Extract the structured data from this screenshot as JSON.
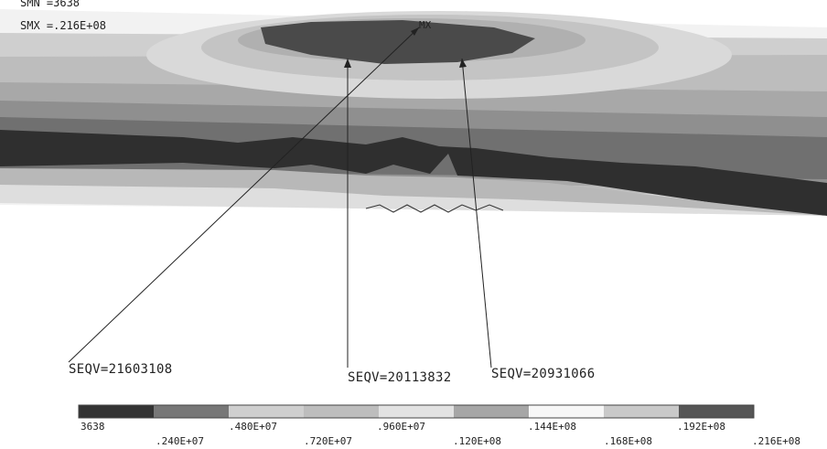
{
  "header": {
    "smn": "SMN =3638",
    "smx": "SMX =.216E+08"
  },
  "plot": {
    "max_marker": "MX",
    "band_shades": [
      "#2b2b2b",
      "#555555",
      "#7b7b7b",
      "#9e9e9e",
      "#bdbdbd",
      "#d7d7d7",
      "#ececec",
      "#f7f7f7"
    ]
  },
  "callouts": [
    {
      "label": "SEQV=21603108",
      "value": 21603108
    },
    {
      "label": "SEQV=20113832",
      "value": 20113832
    },
    {
      "label": "SEQV=20931066",
      "value": 20931066
    }
  ],
  "legend": {
    "min_value": 3638,
    "max_value": 21600000,
    "upper_labels": [
      "3638",
      ".480E+07",
      ".960E+07",
      ".144E+08",
      ".192E+08"
    ],
    "lower_labels": [
      ".240E+07",
      ".720E+07",
      ".120E+08",
      ".168E+08",
      ".216E+08"
    ],
    "colors": [
      "#333333",
      "#777777",
      "#cfcfcf",
      "#bdbdbd",
      "#e2e2e2",
      "#a6a6a6",
      "#f7f7f7",
      "#c9c9c9",
      "#555555"
    ]
  }
}
